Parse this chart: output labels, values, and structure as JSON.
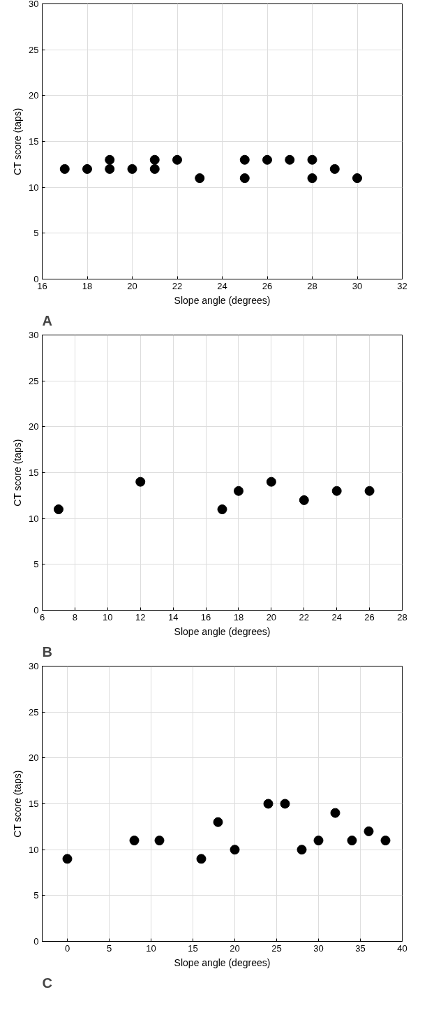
{
  "chart_data": [
    {
      "type": "scatter",
      "xlabel": "Slope angle (degrees)",
      "ylabel": "CT score (taps)",
      "annotations": [
        "A"
      ],
      "marker": "circle",
      "grid": true,
      "series": [
        {
          "color": "#000000",
          "x": [
            17,
            18,
            19,
            19,
            20,
            21,
            21,
            22,
            23,
            25,
            25,
            26,
            27,
            28,
            28,
            29,
            30
          ],
          "values": [
            12,
            12,
            13,
            12,
            12,
            13,
            12,
            13,
            11,
            13,
            11,
            13,
            13,
            13,
            11,
            12,
            11
          ]
        }
      ],
      "xlim": [
        16,
        32
      ],
      "xticks": [
        16,
        18,
        20,
        22,
        24,
        26,
        28,
        30,
        32
      ],
      "ylim": [
        0,
        30
      ],
      "yticks": [
        0,
        5,
        10,
        15,
        20,
        25,
        30
      ]
    },
    {
      "type": "scatter",
      "xlabel": "Slope angle (degrees)",
      "ylabel": "CT score (taps)",
      "annotations": [
        "B"
      ],
      "marker": "circle",
      "grid": true,
      "series": [
        {
          "color": "#000000",
          "x": [
            7,
            12,
            17,
            18,
            20,
            22,
            24,
            26
          ],
          "values": [
            11,
            14,
            11,
            13,
            14,
            12,
            13,
            13
          ]
        }
      ],
      "xlim": [
        6,
        28
      ],
      "xticks": [
        6,
        8,
        10,
        12,
        14,
        16,
        18,
        20,
        22,
        24,
        26,
        28
      ],
      "ylim": [
        0,
        30
      ],
      "yticks": [
        0,
        5,
        10,
        15,
        20,
        25,
        30
      ]
    },
    {
      "type": "scatter",
      "xlabel": "Slope angle (degrees)",
      "ylabel": "CT score (taps)",
      "annotations": [
        "C"
      ],
      "marker": "circle",
      "grid": true,
      "series": [
        {
          "color": "#000000",
          "x": [
            0,
            8,
            11,
            16,
            18,
            20,
            24,
            26,
            28,
            30,
            32,
            34,
            36,
            38
          ],
          "values": [
            9,
            11,
            11,
            9,
            13,
            10,
            15,
            15,
            10,
            11,
            14,
            11,
            12,
            11
          ]
        }
      ],
      "xlim": [
        -3,
        40
      ],
      "xticks": [
        0,
        5,
        10,
        15,
        20,
        25,
        30,
        35,
        40
      ],
      "ylim": [
        0,
        30
      ],
      "yticks": [
        0,
        5,
        10,
        15,
        20,
        25,
        30
      ]
    }
  ]
}
